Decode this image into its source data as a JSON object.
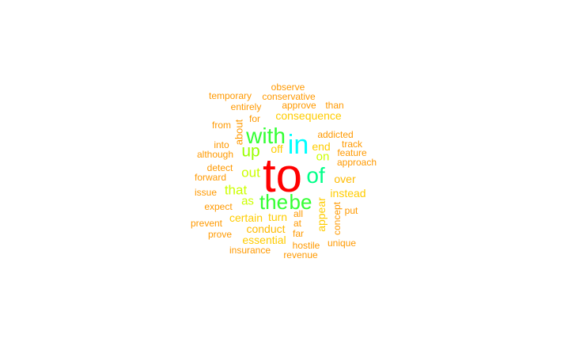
{
  "wordcloud": {
    "words": [
      {
        "text": "to",
        "color": "#ff0000",
        "size": 60
      },
      {
        "text": "in",
        "color": "#00ffff",
        "size": 34
      },
      {
        "text": "with",
        "color": "#33ff33",
        "size": 28
      },
      {
        "text": "of",
        "color": "#00ff88",
        "size": 28
      },
      {
        "text": "the",
        "color": "#33ff33",
        "size": 26
      },
      {
        "text": "be",
        "color": "#33ff33",
        "size": 26
      },
      {
        "text": "up",
        "color": "#99ff00",
        "size": 21
      },
      {
        "text": "that",
        "color": "#ccff00",
        "size": 17
      },
      {
        "text": "out",
        "color": "#ccff00",
        "size": 17
      },
      {
        "text": "as",
        "color": "#ccff00",
        "size": 15
      },
      {
        "text": "on",
        "color": "#ccff00",
        "size": 15
      },
      {
        "text": "end",
        "color": "#ffcc00",
        "size": 14
      },
      {
        "text": "turn",
        "color": "#ffcc00",
        "size": 14
      },
      {
        "text": "off",
        "color": "#ffcc00",
        "size": 14
      },
      {
        "text": "consequence",
        "color": "#ffcc00",
        "size": 14
      },
      {
        "text": "certain",
        "color": "#ffcc00",
        "size": 14
      },
      {
        "text": "essential",
        "color": "#ffcc00",
        "size": 14
      },
      {
        "text": "instead",
        "color": "#ffcc00",
        "size": 14
      },
      {
        "text": "appear",
        "color": "#ffcc00",
        "size": 14
      },
      {
        "text": "conduct",
        "color": "#ffbb00",
        "size": 14
      },
      {
        "text": "over",
        "color": "#ffbb00",
        "size": 14
      },
      {
        "text": "about",
        "color": "#ff9900",
        "size": 13
      },
      {
        "text": "observe",
        "color": "#ff9900",
        "size": 12
      },
      {
        "text": "temporary",
        "color": "#ff9900",
        "size": 12
      },
      {
        "text": "conservative",
        "color": "#ff9900",
        "size": 12
      },
      {
        "text": "entirely",
        "color": "#ff9900",
        "size": 12
      },
      {
        "text": "approve",
        "color": "#ff9900",
        "size": 12
      },
      {
        "text": "than",
        "color": "#ff9900",
        "size": 12
      },
      {
        "text": "for",
        "color": "#ff9900",
        "size": 12
      },
      {
        "text": "from",
        "color": "#ff9900",
        "size": 12
      },
      {
        "text": "addicted",
        "color": "#ff9900",
        "size": 12
      },
      {
        "text": "track",
        "color": "#ff9900",
        "size": 12
      },
      {
        "text": "into",
        "color": "#ff9900",
        "size": 12
      },
      {
        "text": "feature",
        "color": "#ff9900",
        "size": 12
      },
      {
        "text": "although",
        "color": "#ff9900",
        "size": 12
      },
      {
        "text": "approach",
        "color": "#ff9900",
        "size": 12
      },
      {
        "text": "detect",
        "color": "#ff9900",
        "size": 12
      },
      {
        "text": "forward",
        "color": "#ff9900",
        "size": 12
      },
      {
        "text": "issue",
        "color": "#ff9900",
        "size": 12
      },
      {
        "text": "expect",
        "color": "#ff9900",
        "size": 12
      },
      {
        "text": "put",
        "color": "#ff9900",
        "size": 12
      },
      {
        "text": "all",
        "color": "#ff9900",
        "size": 12
      },
      {
        "text": "concept",
        "color": "#ff9900",
        "size": 12
      },
      {
        "text": "prevent",
        "color": "#ff9900",
        "size": 12
      },
      {
        "text": "at",
        "color": "#ff9900",
        "size": 12
      },
      {
        "text": "prove",
        "color": "#ff9900",
        "size": 12
      },
      {
        "text": "far",
        "color": "#ff9900",
        "size": 12
      },
      {
        "text": "unique",
        "color": "#ff9900",
        "size": 12
      },
      {
        "text": "hostile",
        "color": "#ff9900",
        "size": 12
      },
      {
        "text": "insurance",
        "color": "#ff9900",
        "size": 12
      },
      {
        "text": "revenue",
        "color": "#ff9900",
        "size": 12
      }
    ]
  }
}
